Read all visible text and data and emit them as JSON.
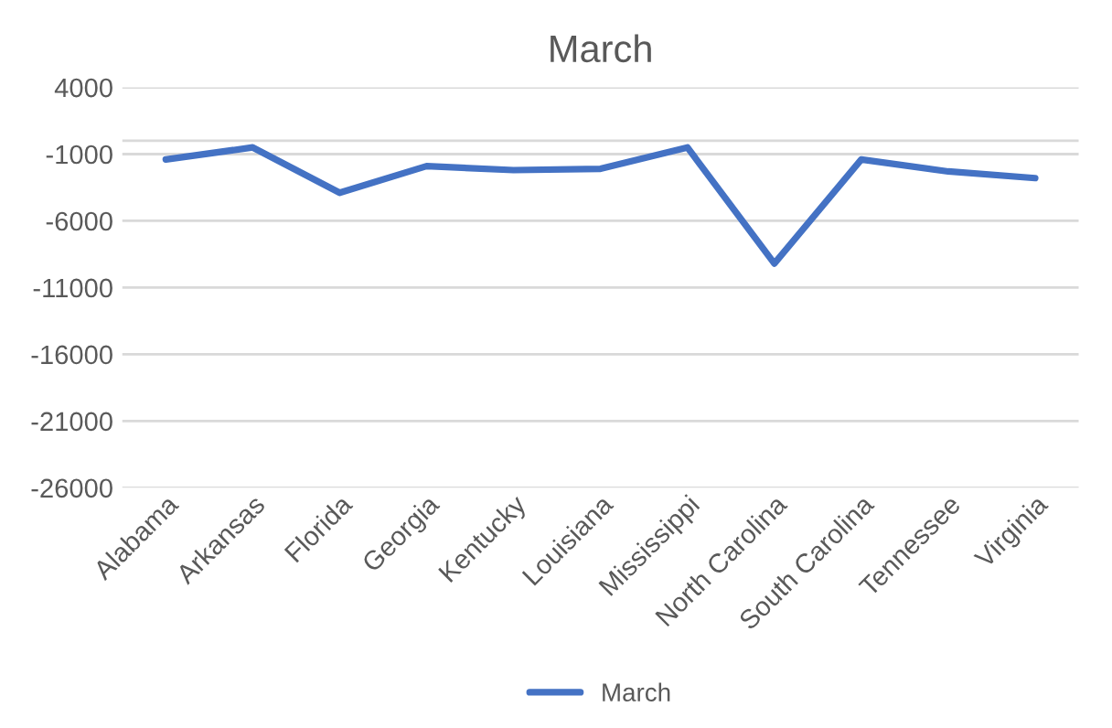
{
  "chart_data": {
    "type": "line",
    "title": "March",
    "categories": [
      "Alabama",
      "Arkansas",
      "Florida",
      "Georgia",
      "Kentucky",
      "Louisiana",
      "Mississippi",
      "North Carolina",
      "South Carolina",
      "Tennessee",
      "Virginia"
    ],
    "series": [
      {
        "name": "March",
        "color": "#4472c4",
        "values": [
          -1400,
          -500,
          -3900,
          -1900,
          -2200,
          -2100,
          -500,
          -9200,
          -1400,
          -2300,
          -2800
        ]
      }
    ],
    "ylim": [
      -26000,
      4000
    ],
    "yticks": [
      4000,
      -1000,
      -6000,
      -11000,
      -16000,
      -21000,
      -26000
    ],
    "grid": "y",
    "legend": "bottom",
    "marker": "none",
    "line_style": "solid"
  }
}
